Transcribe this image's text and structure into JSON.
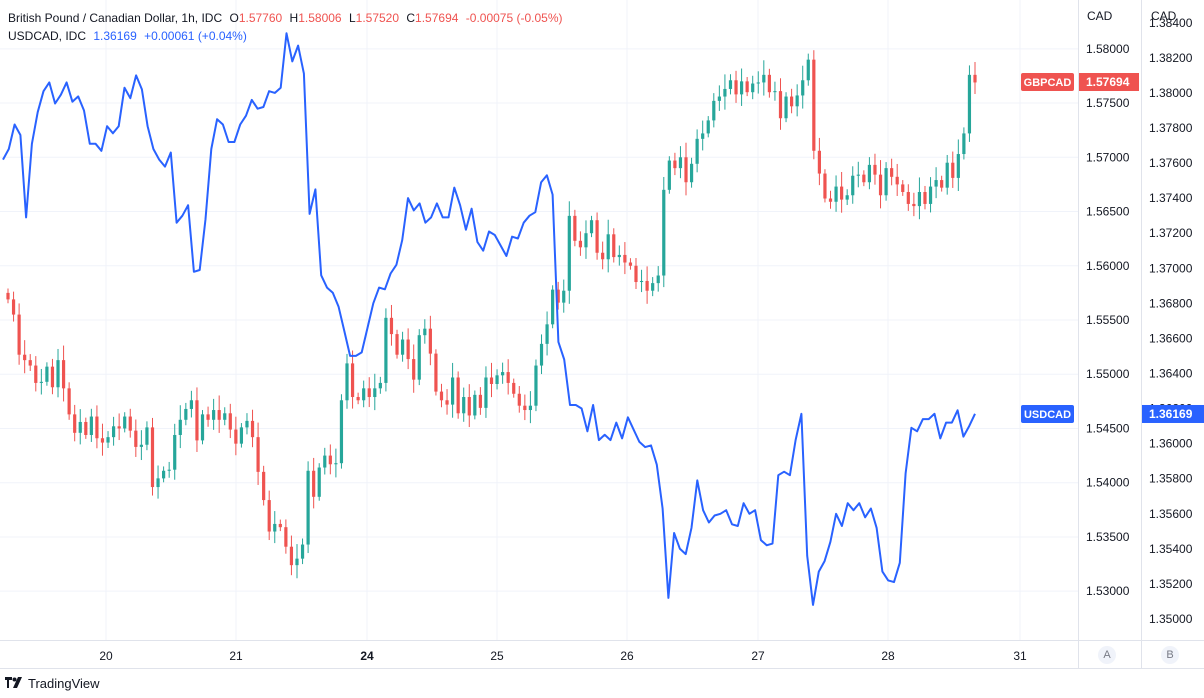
{
  "legend": {
    "primary": {
      "name": "British Pound / Canadian Dollar, 1h, IDC",
      "open_label": "O",
      "open": "1.57760",
      "high_label": "H",
      "high": "1.58006",
      "low_label": "L",
      "low": "1.57520",
      "close_label": "C",
      "close": "1.57694",
      "change": "-0.00075 (-0.05%)"
    },
    "secondary": {
      "name": "USDCAD, IDC",
      "value": "1.36169",
      "change": "+0.00061 (+0.04%)"
    }
  },
  "axes": {
    "left_title": "CAD",
    "right_title": "CAD",
    "left_scale_button": "A",
    "right_scale_button": "B"
  },
  "footer": {
    "brand": "TradingView"
  },
  "colors": {
    "up": "#26a69a",
    "down": "#ef5350",
    "line": "#2962ff",
    "grid": "#f0f3fa"
  },
  "chart_data": {
    "type": "candlestick+line",
    "x_ticks": [
      "20",
      "21",
      "24",
      "25",
      "26",
      "27",
      "28",
      "31"
    ],
    "gbpcad_axis": {
      "title": "CAD",
      "ylim": [
        1.5255,
        1.5845
      ],
      "ticks": [
        "1.58000",
        "1.57500",
        "1.57000",
        "1.56500",
        "1.56000",
        "1.55500",
        "1.55000",
        "1.54500",
        "1.54000",
        "1.53500",
        "1.53000"
      ],
      "last_label": "GBPCAD",
      "last_value": "1.57694"
    },
    "usdcad_axis": {
      "title": "CAD",
      "ylim": [
        1.3488,
        1.3853
      ],
      "ticks": [
        "1.38400",
        "1.38200",
        "1.38000",
        "1.37800",
        "1.37600",
        "1.37400",
        "1.37200",
        "1.37000",
        "1.36800",
        "1.36600",
        "1.36400",
        "1.36200",
        "1.36000",
        "1.35800",
        "1.35600",
        "1.35400",
        "1.35200",
        "1.35000"
      ],
      "last_label": "USDCAD",
      "last_value": "1.36169"
    },
    "gbpcad_close": [
      1.5569,
      1.5555,
      1.5518,
      1.5513,
      1.5508,
      1.5492,
      1.5493,
      1.5507,
      1.5488,
      1.5513,
      1.5487,
      1.5463,
      1.5446,
      1.5456,
      1.5444,
      1.5461,
      1.5441,
      1.5437,
      1.5442,
      1.5452,
      1.545,
      1.5461,
      1.5448,
      1.5433,
      1.5435,
      1.5451,
      1.5396,
      1.5404,
      1.5411,
      1.5412,
      1.5444,
      1.5458,
      1.5468,
      1.5476,
      1.5439,
      1.5463,
      1.5458,
      1.5467,
      1.5458,
      1.5464,
      1.5449,
      1.5436,
      1.5451,
      1.5457,
      1.5442,
      1.541,
      1.5384,
      1.5355,
      1.5362,
      1.5359,
      1.5341,
      1.5324,
      1.533,
      1.5343,
      1.5411,
      1.5387,
      1.5414,
      1.5425,
      1.5417,
      1.5418,
      1.5476,
      1.551,
      1.5479,
      1.5476,
      1.5487,
      1.5479,
      1.5487,
      1.5492,
      1.5552,
      1.5537,
      1.5518,
      1.5532,
      1.5514,
      1.5495,
      1.5536,
      1.5542,
      1.5519,
      1.5484,
      1.5476,
      1.5472,
      1.5497,
      1.5464,
      1.5479,
      1.5462,
      1.5481,
      1.5469,
      1.5497,
      1.5491,
      1.5499,
      1.5502,
      1.5492,
      1.5482,
      1.5471,
      1.5467,
      1.5471,
      1.5508,
      1.5528,
      1.5546,
      1.5578,
      1.5566,
      1.5577,
      1.5646,
      1.5623,
      1.5617,
      1.563,
      1.5642,
      1.5612,
      1.5606,
      1.5629,
      1.5608,
      1.561,
      1.5603,
      1.56,
      1.5585,
      1.5586,
      1.5577,
      1.5584,
      1.5591,
      1.567,
      1.5697,
      1.569,
      1.57,
      1.5677,
      1.5694,
      1.5717,
      1.5722,
      1.5734,
      1.5752,
      1.5756,
      1.5763,
      1.5771,
      1.5758,
      1.577,
      1.576,
      1.5768,
      1.5769,
      1.5776,
      1.576,
      1.5761,
      1.5736,
      1.5756,
      1.5747,
      1.5757,
      1.5771,
      1.579,
      1.5706,
      1.5685,
      1.5662,
      1.5659,
      1.5673,
      1.5661,
      1.5665,
      1.5683,
      1.5684,
      1.5677,
      1.5693,
      1.5684,
      1.5665,
      1.569,
      1.5682,
      1.5675,
      1.5668,
      1.5657,
      1.5655,
      1.5668,
      1.5657,
      1.5673,
      1.5679,
      1.5672,
      1.5695,
      1.5681,
      1.5703,
      1.5722,
      1.5776,
      1.5769
    ],
    "usdcad_close": [
      1.3762,
      1.3768,
      1.3782,
      1.3776,
      1.3729,
      1.3771,
      1.3789,
      1.3801,
      1.3806,
      1.3794,
      1.3799,
      1.3806,
      1.3795,
      1.3798,
      1.379,
      1.3771,
      1.3771,
      1.3767,
      1.3781,
      1.3777,
      1.3781,
      1.3803,
      1.3797,
      1.381,
      1.3802,
      1.3781,
      1.3768,
      1.3762,
      1.3758,
      1.3766,
      1.3726,
      1.373,
      1.3736,
      1.3698,
      1.3699,
      1.3728,
      1.3768,
      1.3785,
      1.3782,
      1.3772,
      1.3772,
      1.3782,
      1.3787,
      1.3796,
      1.3791,
      1.3792,
      1.3801,
      1.38,
      1.3803,
      1.3834,
      1.3818,
      1.3827,
      1.3811,
      1.3731,
      1.3745,
      1.3696,
      1.3689,
      1.3686,
      1.3678,
      1.3664,
      1.365,
      1.365,
      1.3652,
      1.3666,
      1.368,
      1.3689,
      1.3688,
      1.3697,
      1.3702,
      1.3716,
      1.374,
      1.3733,
      1.3737,
      1.3726,
      1.3729,
      1.3737,
      1.3729,
      1.3729,
      1.3746,
      1.3736,
      1.3722,
      1.3734,
      1.3715,
      1.371,
      1.3721,
      1.3719,
      1.3713,
      1.3707,
      1.3718,
      1.3717,
      1.3726,
      1.373,
      1.3732,
      1.3749,
      1.3753,
      1.3742,
      1.3658,
      1.3648,
      1.3622,
      1.3622,
      1.362,
      1.3607,
      1.3622,
      1.3602,
      1.3605,
      1.3602,
      1.3612,
      1.3603,
      1.3615,
      1.3608,
      1.3601,
      1.3598,
      1.3599,
      1.3588,
      1.3563,
      1.3512,
      1.3549,
      1.354,
      1.3537,
      1.3552,
      1.3579,
      1.3562,
      1.3555,
      1.3559,
      1.356,
      1.3562,
      1.3554,
      1.3553,
      1.3566,
      1.356,
      1.3562,
      1.3545,
      1.3542,
      1.3543,
      1.3582,
      1.3584,
      1.3582,
      1.3602,
      1.3617,
      1.3536,
      1.3508,
      1.3527,
      1.3533,
      1.3544,
      1.356,
      1.3553,
      1.3566,
      1.3562,
      1.3566,
      1.3558,
      1.3563,
      1.3552,
      1.3527,
      1.3522,
      1.3521,
      1.3532,
      1.3583,
      1.3609,
      1.3607,
      1.3614,
      1.3614,
      1.3617,
      1.3603,
      1.3612,
      1.3612,
      1.3619,
      1.3604,
      1.361,
      1.3617
    ]
  }
}
